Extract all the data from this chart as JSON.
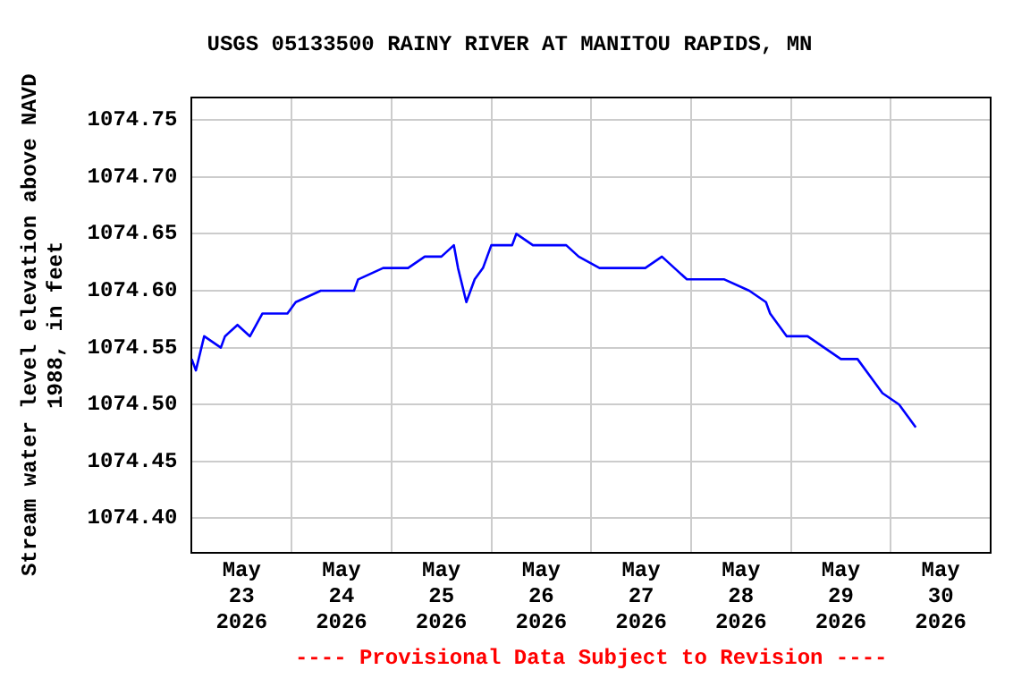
{
  "chart_data": {
    "type": "line",
    "title": "USGS 05133500 RAINY RIVER AT MANITOU RAPIDS, MN",
    "ylabel": "Stream water level elevation above NAVD 1988, in feet",
    "annotations": [
      "---- Provisional Data Subject to Revision ----"
    ],
    "xlim": [
      "2026-05-23T00:00",
      "2026-05-31T00:00"
    ],
    "xticks": [
      {
        "value": "2026-05-23T12:00",
        "label": "May 23 2026"
      },
      {
        "value": "2026-05-24T00:00",
        "label": null
      },
      {
        "value": "2026-05-24T12:00",
        "label": "May 24 2026"
      },
      {
        "value": "2026-05-25T00:00",
        "label": null
      },
      {
        "value": "2026-05-25T12:00",
        "label": "May 25 2026"
      },
      {
        "value": "2026-05-26T00:00",
        "label": null
      },
      {
        "value": "2026-05-26T12:00",
        "label": "May 26 2026"
      },
      {
        "value": "2026-05-27T00:00",
        "label": null
      },
      {
        "value": "2026-05-27T12:00",
        "label": "May 27 2026"
      },
      {
        "value": "2026-05-28T00:00",
        "label": null
      },
      {
        "value": "2026-05-28T12:00",
        "label": "May 28 2026"
      },
      {
        "value": "2026-05-29T00:00",
        "label": null
      },
      {
        "value": "2026-05-29T12:00",
        "label": "May 29 2026"
      },
      {
        "value": "2026-05-30T00:00",
        "label": null
      },
      {
        "value": "2026-05-30T12:00",
        "label": "May 30 2026"
      }
    ],
    "ylim": [
      1074.37,
      1074.77
    ],
    "yticks": [
      {
        "value": 1074.4,
        "label": "1074.40"
      },
      1074.45,
      {
        "value": 1074.5,
        "label": "1074.50"
      },
      1074.55,
      {
        "value": 1074.6,
        "label": "1074.60"
      },
      1074.65,
      {
        "value": 1074.7,
        "label": "1074.70"
      },
      1074.75
    ],
    "grid": true,
    "legend": false,
    "marker": "none",
    "line_style": "solid",
    "series": [
      {
        "color": "#0000ff",
        "x": [
          "2026-05-23T00:00",
          "2026-05-23T01:00",
          "2026-05-23T03:00",
          "2026-05-23T07:00",
          "2026-05-23T08:00",
          "2026-05-23T11:00",
          "2026-05-23T14:00",
          "2026-05-23T17:00",
          "2026-05-23T23:00",
          "2026-05-24T01:00",
          "2026-05-24T07:00",
          "2026-05-24T15:00",
          "2026-05-24T16:00",
          "2026-05-24T22:00",
          "2026-05-25T04:00",
          "2026-05-25T08:00",
          "2026-05-25T12:00",
          "2026-05-25T15:00",
          "2026-05-25T16:00",
          "2026-05-25T18:00",
          "2026-05-25T20:00",
          "2026-05-25T22:00",
          "2026-05-26T00:00",
          "2026-05-26T05:00",
          "2026-05-26T06:00",
          "2026-05-26T10:00",
          "2026-05-26T14:00",
          "2026-05-26T18:00",
          "2026-05-26T21:00",
          "2026-05-27T02:00",
          "2026-05-27T07:00",
          "2026-05-27T13:00",
          "2026-05-27T17:00",
          "2026-05-27T20:00",
          "2026-05-27T23:00",
          "2026-05-28T04:00",
          "2026-05-28T08:00",
          "2026-05-28T14:00",
          "2026-05-28T18:00",
          "2026-05-28T19:00",
          "2026-05-28T23:00",
          "2026-05-29T04:00",
          "2026-05-29T08:00",
          "2026-05-29T12:00",
          "2026-05-29T16:00",
          "2026-05-29T20:00",
          "2026-05-29T22:00",
          "2026-05-30T02:00",
          "2026-05-30T04:00",
          "2026-05-30T06:00"
        ],
        "values": [
          1074.54,
          1074.53,
          1074.56,
          1074.55,
          1074.56,
          1074.57,
          1074.56,
          1074.58,
          1074.58,
          1074.59,
          1074.6,
          1074.6,
          1074.61,
          1074.62,
          1074.62,
          1074.63,
          1074.63,
          1074.64,
          1074.62,
          1074.59,
          1074.61,
          1074.62,
          1074.64,
          1074.64,
          1074.65,
          1074.64,
          1074.64,
          1074.64,
          1074.63,
          1074.62,
          1074.62,
          1074.62,
          1074.63,
          1074.62,
          1074.61,
          1074.61,
          1074.61,
          1074.6,
          1074.59,
          1074.58,
          1074.56,
          1074.56,
          1074.55,
          1074.54,
          1074.54,
          1074.52,
          1074.51,
          1074.5,
          1074.49,
          1074.48
        ]
      }
    ]
  }
}
